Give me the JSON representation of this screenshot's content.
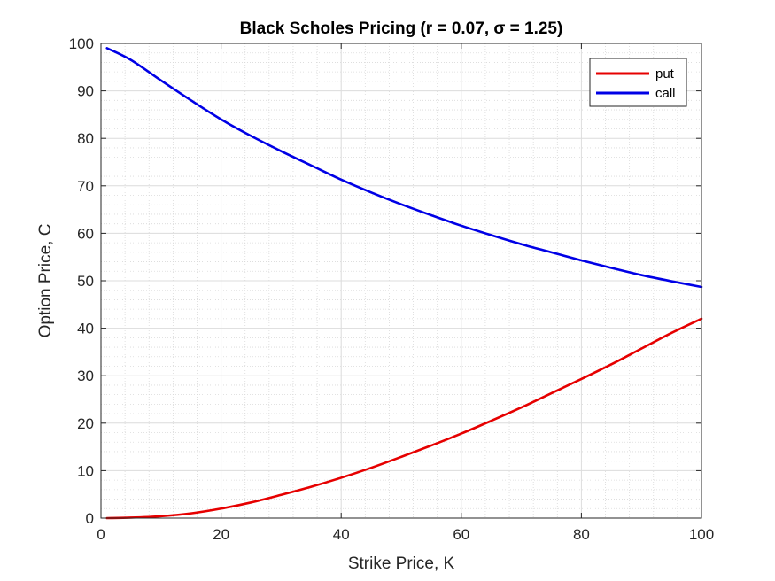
{
  "chart_data": {
    "type": "line",
    "title": "Black Scholes Pricing (r = 0.07, σ = 1.25)",
    "xlabel": "Strike Price, K",
    "ylabel": "Option Price, C",
    "xlim": [
      0,
      100
    ],
    "ylim": [
      0,
      100
    ],
    "xticks": [
      0,
      20,
      40,
      60,
      80,
      100
    ],
    "yticks": [
      0,
      10,
      20,
      30,
      40,
      50,
      60,
      70,
      80,
      90,
      100
    ],
    "grid": true,
    "minor_grid": true,
    "legend_position": "top-right",
    "series": [
      {
        "name": "put",
        "color": "#e60000",
        "x": [
          1,
          5,
          10,
          15,
          20,
          25,
          30,
          35,
          40,
          45,
          50,
          55,
          60,
          65,
          70,
          75,
          80,
          85,
          90,
          95,
          100
        ],
        "y": [
          0.0,
          0.1,
          0.4,
          1.0,
          2.0,
          3.3,
          4.9,
          6.6,
          8.5,
          10.6,
          12.9,
          15.3,
          17.8,
          20.5,
          23.3,
          26.3,
          29.3,
          32.4,
          35.7,
          39.0,
          42.0
        ]
      },
      {
        "name": "call",
        "color": "#0000e6",
        "x": [
          1,
          5,
          10,
          15,
          20,
          25,
          30,
          35,
          40,
          45,
          50,
          55,
          60,
          65,
          70,
          75,
          80,
          85,
          90,
          95,
          100
        ],
        "y": [
          99.0,
          96.5,
          92.2,
          88.0,
          84.0,
          80.5,
          77.3,
          74.3,
          71.3,
          68.6,
          66.1,
          63.8,
          61.6,
          59.6,
          57.7,
          56.0,
          54.3,
          52.7,
          51.2,
          49.9,
          48.7
        ]
      }
    ]
  }
}
